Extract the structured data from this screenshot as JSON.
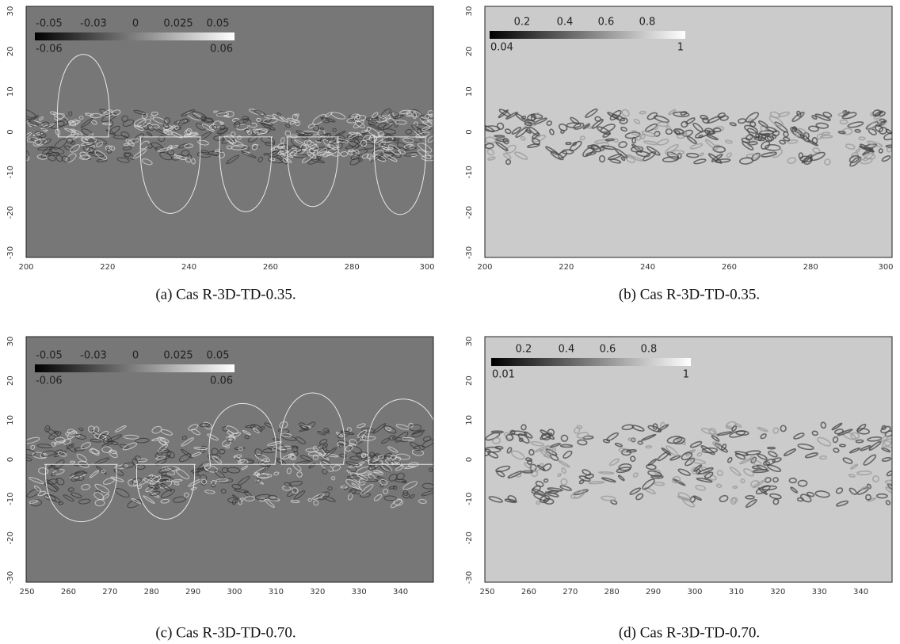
{
  "figure": {
    "panels": [
      {
        "caption": "(a) Cas R-3D-TD-0.35.",
        "xticks": [
          200,
          220,
          240,
          260,
          280,
          300
        ],
        "yticks": [
          30,
          20,
          10,
          0,
          -10,
          -20,
          -30
        ],
        "colorbar": {
          "ticks": [
            -0.05,
            -0.03,
            0,
            0.025,
            0.05
          ],
          "min": -0.06,
          "max": 0.06
        }
      },
      {
        "caption": "(b) Cas R-3D-TD-0.35.",
        "xticks": [
          200,
          220,
          240,
          260,
          280,
          300
        ],
        "yticks": [
          30,
          20,
          10,
          0,
          -10,
          -20,
          -30
        ],
        "colorbar": {
          "ticks": [
            0.2,
            0.4,
            0.6,
            0.8
          ],
          "min": 0.04,
          "max": 1
        }
      },
      {
        "caption": "(c) Cas R-3D-TD-0.70.",
        "xticks": [
          250,
          260,
          270,
          280,
          290,
          300,
          310,
          320,
          330,
          340
        ],
        "yticks": [
          30,
          20,
          10,
          0,
          -10,
          -20,
          -30
        ],
        "colorbar": {
          "ticks": [
            -0.05,
            -0.03,
            0,
            0.025,
            0.05
          ],
          "min": -0.06,
          "max": 0.06
        }
      },
      {
        "caption": "(d) Cas R-3D-TD-0.70.",
        "xticks": [
          250,
          260,
          270,
          280,
          290,
          300,
          310,
          320,
          330,
          340
        ],
        "yticks": [
          30,
          20,
          10,
          0,
          -10,
          -20,
          -30
        ],
        "colorbar": {
          "ticks": [
            0.2,
            0.4,
            0.6,
            0.8
          ],
          "min": 0.01,
          "max": 1
        }
      }
    ]
  }
}
